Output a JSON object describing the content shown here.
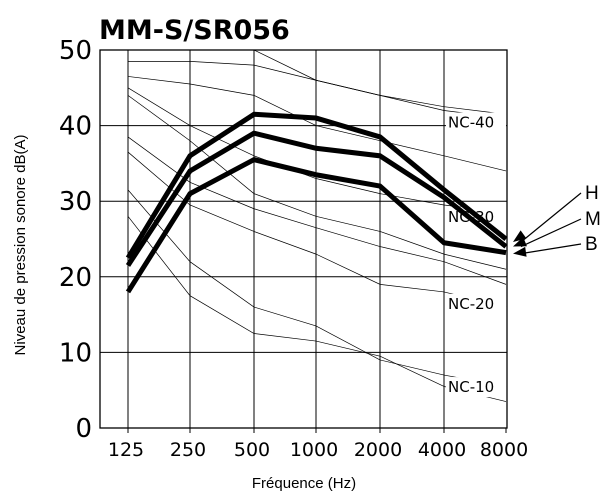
{
  "chart_data": {
    "type": "line",
    "title": "MM-S/SR056",
    "xlabel": "Fréquence (Hz)",
    "ylabel": "Niveau de pression sonore dB(A)",
    "categories": [
      "125",
      "250",
      "500",
      "1000",
      "2000",
      "4000",
      "8000"
    ],
    "yticks": [
      "0",
      "10",
      "20",
      "30",
      "40",
      "50"
    ],
    "ylim": [
      0,
      50
    ],
    "grid": true,
    "series": [
      {
        "name": "H",
        "values": [
          22.5,
          36,
          41.5,
          41,
          38.5,
          31.5,
          25
        ]
      },
      {
        "name": "M",
        "values": [
          21.5,
          34,
          39,
          37,
          36,
          30.5,
          24
        ]
      },
      {
        "name": "B",
        "values": [
          18,
          31,
          35.5,
          33.5,
          32,
          24.5,
          23.2
        ]
      }
    ],
    "nc_curves": [
      {
        "name": "NC-40",
        "values": [
          50,
          50,
          50,
          46,
          44,
          42,
          41
        ]
      },
      {
        "name": "NC-30",
        "values": [
          45,
          40,
          36,
          33,
          31,
          29.5,
          28.5
        ]
      },
      {
        "name": "NC-20",
        "values": [
          36.5,
          29.5,
          26,
          23,
          19,
          18,
          16
        ]
      },
      {
        "name": "NC-10",
        "values": [
          31.5,
          22,
          16,
          13.5,
          9,
          7,
          5.5
        ]
      }
    ],
    "nc_extra_curves": [
      [
        48.5,
        48.5,
        48,
        46,
        44,
        42.5,
        41.5
      ],
      [
        46.5,
        45.5,
        44,
        40,
        38,
        36,
        34
      ],
      [
        44,
        38,
        31,
        28,
        26,
        23,
        21
      ],
      [
        38.5,
        32.5,
        29,
        26.5,
        24,
        22,
        19
      ],
      [
        28,
        17.5,
        12.5,
        11.5,
        9.5,
        5.5,
        3.5
      ]
    ]
  }
}
